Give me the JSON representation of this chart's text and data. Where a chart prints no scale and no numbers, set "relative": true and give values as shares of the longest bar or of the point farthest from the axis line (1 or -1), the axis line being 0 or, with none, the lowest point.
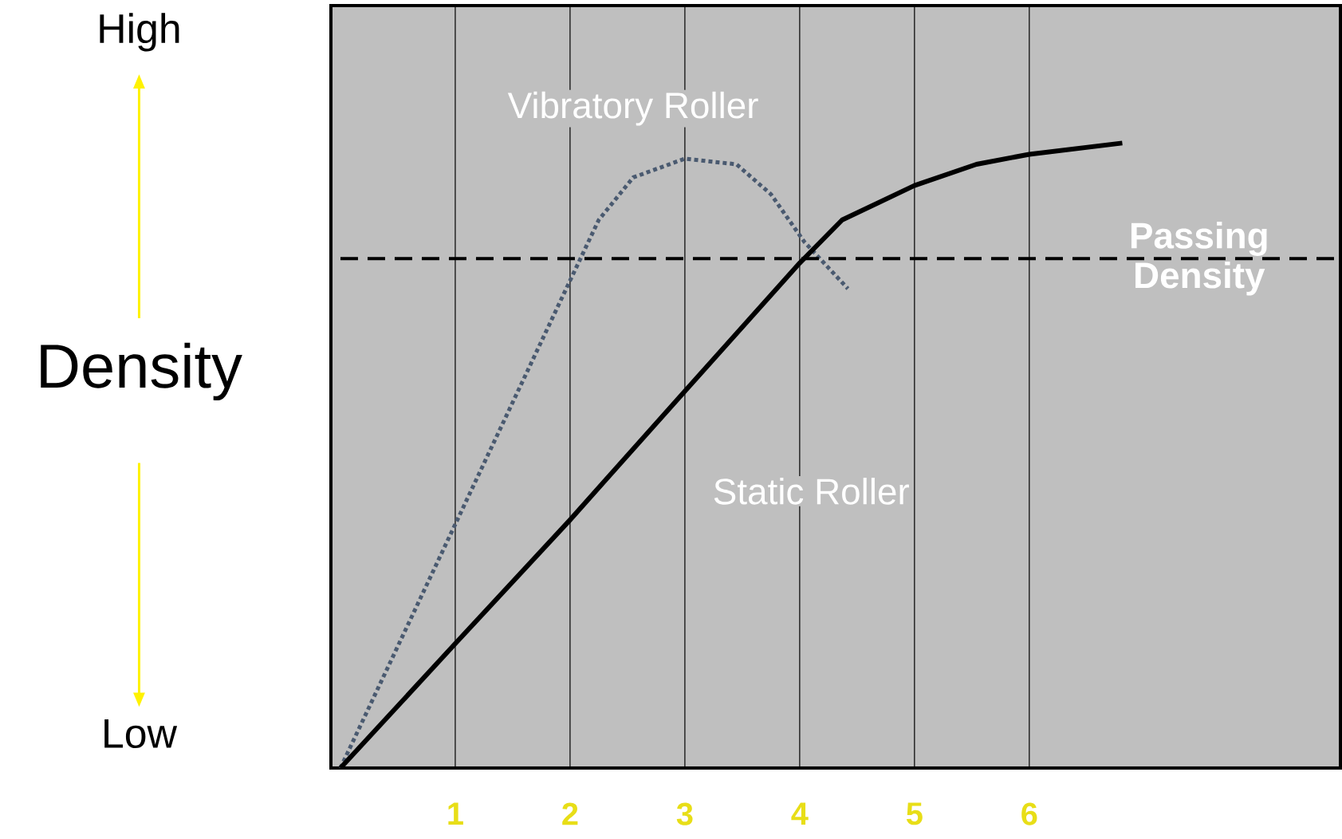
{
  "chart_data": {
    "type": "line",
    "relative": true,
    "ylabel": "Density",
    "x": [
      0,
      1,
      2,
      3,
      4,
      4.37,
      5,
      5.54,
      6,
      6.81
    ],
    "xlim": [
      -0.083,
      8.71
    ],
    "xticks": [
      1,
      2,
      3,
      4,
      5,
      6
    ],
    "grid": "x",
    "marker": "none",
    "series": [
      {
        "name": "Vibratory Roller",
        "color": "#4a5a70",
        "line_style": "dotted",
        "x": [
          0,
          1,
          2,
          2.25,
          2.55,
          3,
          3.45,
          3.75,
          4.04,
          4.42
        ],
        "values": [
          0,
          0.39,
          0.78,
          0.877,
          0.945,
          0.975,
          0.966,
          0.918,
          0.842,
          0.767
        ]
      },
      {
        "name": "Static Roller",
        "color": "#000000",
        "line_style": "solid",
        "values": [
          0,
          0.199,
          0.397,
          0.603,
          0.808,
          0.877,
          0.932,
          0.966,
          0.982,
          1.0
        ]
      }
    ],
    "ref_lines": [
      {
        "axis": "y",
        "value": 0.815,
        "label": "Passing Density",
        "color": "#000000",
        "line_style": "dashed"
      }
    ],
    "annotations": [
      "High",
      "Low"
    ]
  }
}
